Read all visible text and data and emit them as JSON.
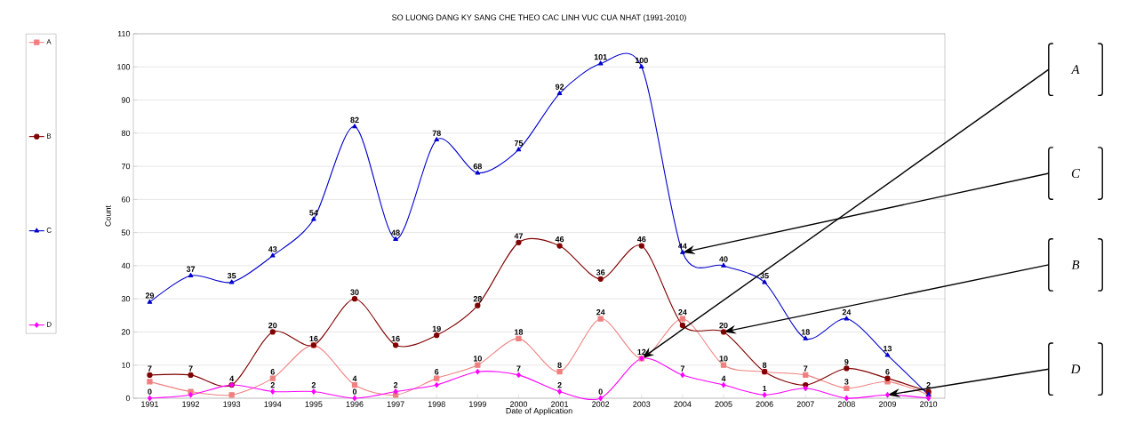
{
  "chart_data": {
    "type": "line",
    "title": "SO LUONG DANG KY SANG CHE THEO CAC LINH VUC CUA NHAT (1991-2010)",
    "xlabel": "Date of Application",
    "ylabel": "Count",
    "x": [
      1991,
      1992,
      1993,
      1994,
      1995,
      1996,
      1997,
      1998,
      1999,
      2000,
      2001,
      2002,
      2003,
      2004,
      2005,
      2006,
      2007,
      2008,
      2009,
      2010
    ],
    "xlim": [
      1990.6,
      2010.4
    ],
    "xticks": [
      1991,
      1992,
      1993,
      1994,
      1995,
      1996,
      1997,
      1998,
      1999,
      2000,
      2001,
      2002,
      2003,
      2004,
      2005,
      2006,
      2007,
      2008,
      2009,
      2010
    ],
    "ylim": [
      0,
      110
    ],
    "yticks": [
      0,
      10,
      20,
      30,
      40,
      50,
      60,
      70,
      80,
      90,
      100,
      110
    ],
    "grid": "y",
    "legend": "left",
    "series": [
      {
        "name": "A",
        "color": "#f08080",
        "marker": "square",
        "values": [
          5,
          2,
          1,
          6,
          16,
          4,
          1,
          6,
          10,
          18,
          8,
          24,
          12,
          24,
          10,
          8,
          7,
          3,
          5,
          1
        ],
        "value_labels": [
          null,
          null,
          null,
          "6",
          "16",
          "4",
          null,
          "6",
          "10",
          "18",
          "8",
          "24",
          null,
          "24",
          "10",
          null,
          "7",
          "3",
          null,
          null
        ]
      },
      {
        "name": "B",
        "color": "#800000",
        "marker": "circle",
        "values": [
          7,
          7,
          4,
          20,
          16,
          30,
          16,
          19,
          28,
          47,
          46,
          36,
          46,
          22,
          20,
          8,
          4,
          9,
          6,
          2
        ],
        "value_labels": [
          "7",
          "7",
          null,
          "20",
          null,
          "30",
          "16",
          "19",
          "28",
          "47",
          "46",
          "36",
          "46",
          null,
          "20",
          "8",
          null,
          "9",
          "6",
          "2"
        ]
      },
      {
        "name": "C",
        "color": "#0000cc",
        "marker": "triangle",
        "values": [
          29,
          37,
          35,
          43,
          54,
          82,
          48,
          78,
          68,
          75,
          92,
          101,
          100,
          44,
          40,
          35,
          18,
          24,
          13,
          1
        ],
        "value_labels": [
          "29",
          "37",
          "35",
          "43",
          "54",
          "82",
          "48",
          "78",
          "68",
          "75",
          "92",
          "101",
          "100",
          "44",
          "40",
          "35",
          "18",
          "24",
          "13",
          null
        ]
      },
      {
        "name": "D",
        "color": "#ff00ff",
        "marker": "diamond",
        "values": [
          0,
          1,
          4,
          2,
          2,
          0,
          2,
          4,
          8,
          7,
          2,
          0,
          12,
          7,
          4,
          1,
          3,
          0,
          1,
          0
        ],
        "value_labels": [
          "0",
          null,
          "4",
          "2",
          "2",
          "0",
          "2",
          null,
          null,
          "7",
          "2",
          "0",
          "12",
          "7",
          "4",
          "1",
          null,
          null,
          null,
          null
        ]
      }
    ],
    "annotations": [
      "A",
      "C",
      "B",
      "D"
    ]
  }
}
